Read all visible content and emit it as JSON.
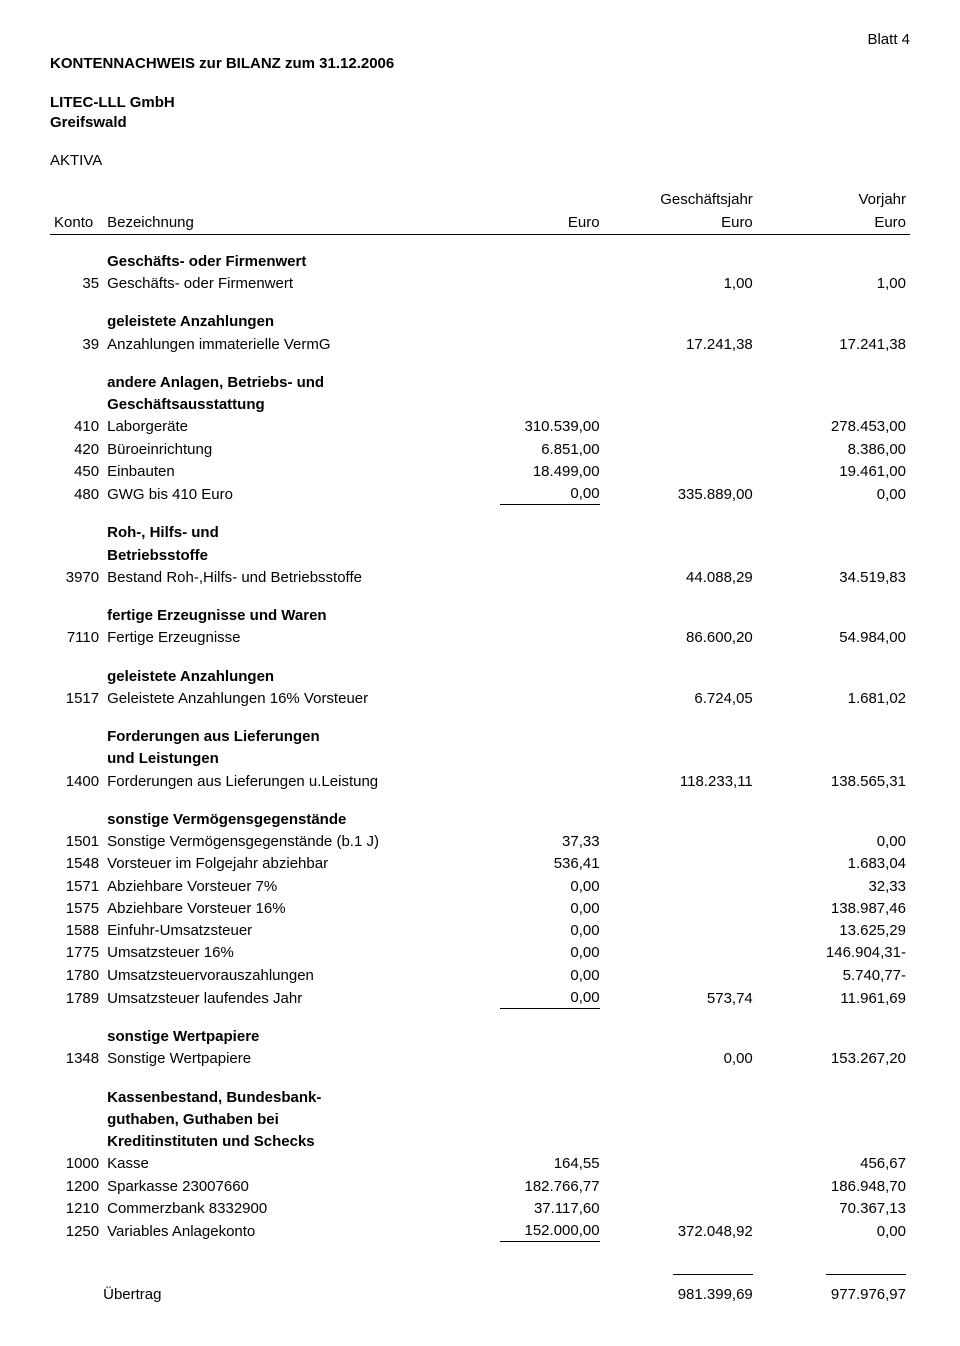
{
  "meta": {
    "page_label": "Blatt 4",
    "doc_title": "KONTENNACHWEIS zur BILANZ zum 31.12.2006",
    "company_line1": "LITEC-LLL GmbH",
    "company_line2": "Greifswald",
    "section": "AKTIVA"
  },
  "headers": {
    "konto": "Konto",
    "bezeichnung": "Bezeichnung",
    "euro": "Euro",
    "geschaeftsjahr": "Geschäftsjahr",
    "vorjahr": "Vorjahr",
    "euro2": "Euro",
    "euro3": "Euro"
  },
  "groups": [
    {
      "heading": [
        "Geschäfts- oder Firmenwert"
      ],
      "rows": [
        {
          "konto": "35",
          "desc": "Geschäfts- oder Firmenwert",
          "e1": "",
          "e2": "1,00",
          "e3": "1,00"
        }
      ]
    },
    {
      "heading": [
        "geleistete Anzahlungen"
      ],
      "rows": [
        {
          "konto": "39",
          "desc": "Anzahlungen immaterielle VermG",
          "e1": "",
          "e2": "17.241,38",
          "e3": "17.241,38"
        }
      ]
    },
    {
      "heading": [
        "andere Anlagen, Betriebs- und",
        "Geschäftsausstattung"
      ],
      "rows": [
        {
          "konto": "410",
          "desc": "Laborgeräte",
          "e1": "310.539,00",
          "e2": "",
          "e3": "278.453,00"
        },
        {
          "konto": "420",
          "desc": "Büroeinrichtung",
          "e1": "6.851,00",
          "e2": "",
          "e3": "8.386,00"
        },
        {
          "konto": "450",
          "desc": "Einbauten",
          "e1": "18.499,00",
          "e2": "",
          "e3": "19.461,00"
        },
        {
          "konto": "480",
          "desc": "GWG bis 410 Euro",
          "e1": "0,00",
          "e2": "335.889,00",
          "e3": "0,00",
          "underline_e1": true
        }
      ]
    },
    {
      "heading": [
        "Roh-, Hilfs- und",
        "Betriebsstoffe"
      ],
      "rows": [
        {
          "konto": "3970",
          "desc": "Bestand Roh-,Hilfs- und Betriebsstoffe",
          "e1": "",
          "e2": "44.088,29",
          "e3": "34.519,83"
        }
      ]
    },
    {
      "heading": [
        "fertige Erzeugnisse und Waren"
      ],
      "rows": [
        {
          "konto": "7110",
          "desc": "Fertige Erzeugnisse",
          "e1": "",
          "e2": "86.600,20",
          "e3": "54.984,00"
        }
      ]
    },
    {
      "heading": [
        "geleistete Anzahlungen"
      ],
      "rows": [
        {
          "konto": "1517",
          "desc": "Geleistete Anzahlungen 16% Vorsteuer",
          "e1": "",
          "e2": "6.724,05",
          "e3": "1.681,02"
        }
      ]
    },
    {
      "heading": [
        "Forderungen aus Lieferungen",
        "und Leistungen"
      ],
      "rows": [
        {
          "konto": "1400",
          "desc": "Forderungen aus Lieferungen u.Leistung",
          "e1": "",
          "e2": "118.233,11",
          "e3": "138.565,31"
        }
      ]
    },
    {
      "heading": [
        "sonstige Vermögensgegenstände"
      ],
      "rows": [
        {
          "konto": "1501",
          "desc": "Sonstige Vermögensgegenstände (b.1 J)",
          "e1": "37,33",
          "e2": "",
          "e3": "0,00"
        },
        {
          "konto": "1548",
          "desc": "Vorsteuer im Folgejahr abziehbar",
          "e1": "536,41",
          "e2": "",
          "e3": "1.683,04"
        },
        {
          "konto": "1571",
          "desc": "Abziehbare Vorsteuer 7%",
          "e1": "0,00",
          "e2": "",
          "e3": "32,33"
        },
        {
          "konto": "1575",
          "desc": "Abziehbare Vorsteuer 16%",
          "e1": "0,00",
          "e2": "",
          "e3": "138.987,46"
        },
        {
          "konto": "1588",
          "desc": "Einfuhr-Umsatzsteuer",
          "e1": "0,00",
          "e2": "",
          "e3": "13.625,29"
        },
        {
          "konto": "1775",
          "desc": "Umsatzsteuer 16%",
          "e1": "0,00",
          "e2": "",
          "e3": "146.904,31-"
        },
        {
          "konto": "1780",
          "desc": "Umsatzsteuervorauszahlungen",
          "e1": "0,00",
          "e2": "",
          "e3": "5.740,77-"
        },
        {
          "konto": "1789",
          "desc": "Umsatzsteuer laufendes Jahr",
          "e1": "0,00",
          "e2": "573,74",
          "e3": "11.961,69",
          "underline_e1": true
        }
      ]
    },
    {
      "heading": [
        "sonstige Wertpapiere"
      ],
      "rows": [
        {
          "konto": "1348",
          "desc": "Sonstige Wertpapiere",
          "e1": "",
          "e2": "0,00",
          "e3": "153.267,20"
        }
      ]
    },
    {
      "heading": [
        "Kassenbestand, Bundesbank-",
        "guthaben, Guthaben bei",
        "Kreditinstituten und Schecks"
      ],
      "rows": [
        {
          "konto": "1000",
          "desc": "Kasse",
          "e1": "164,55",
          "e2": "",
          "e3": "456,67"
        },
        {
          "konto": "1200",
          "desc": "Sparkasse 23007660",
          "e1": "182.766,77",
          "e2": "",
          "e3": "186.948,70"
        },
        {
          "konto": "1210",
          "desc": "Commerzbank 8332900",
          "e1": "37.117,60",
          "e2": "",
          "e3": "70.367,13"
        },
        {
          "konto": "1250",
          "desc": "Variables Anlagekonto",
          "e1": "152.000,00",
          "e2": "372.048,92",
          "e3": "0,00",
          "underline_e1": true
        }
      ]
    }
  ],
  "footer": {
    "label": "Übertrag",
    "e2": "981.399,69",
    "e3": "977.976,97"
  }
}
